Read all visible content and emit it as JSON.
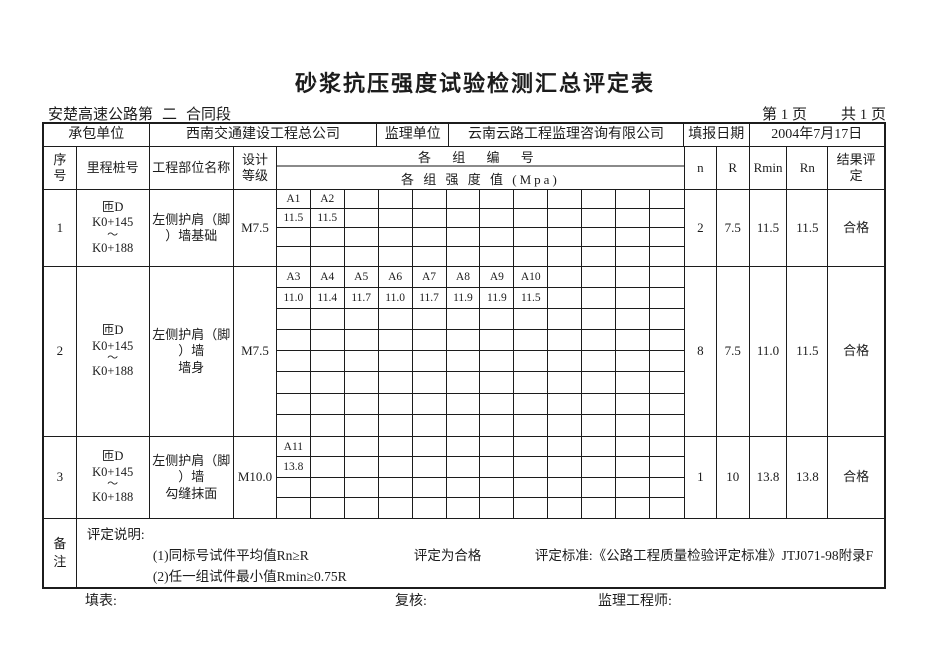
{
  "page": {
    "title": "砂浆抗压强度试验检测汇总评定表",
    "contract_prefix": "安楚高速公路第",
    "contract_no": "二",
    "contract_suffix": "合同段",
    "page_left": "第 1 页",
    "page_right": "共 1 页"
  },
  "info_header": {
    "contractor_label": "承包单位",
    "contractor_value": "西南交通建设工程总公司",
    "supervisor_label": "监理单位",
    "supervisor_value": "云南云路工程监理咨询有限公司",
    "date_label": "填报日期",
    "date_value": "2004年7月17日"
  },
  "columns": {
    "seq": "序号",
    "station": "里程桩号",
    "part_name": "工程部位名称",
    "design_grade": "设计等级",
    "group_top": "各 组 编 号",
    "group_bottom": "各 组 强 度 值 (Mpa)",
    "n": "n",
    "r": "R",
    "rmin": "Rmin",
    "rn": "Rn",
    "result": "结果评定"
  },
  "rows": [
    {
      "seq": "1",
      "station_lines": [
        "匝D",
        "K0+145",
        "～",
        "K0+188"
      ],
      "part_lines": [
        "左侧护肩（脚）墙基础"
      ],
      "grade": "M7.5",
      "sub_rows": 4,
      "labels": [
        "A1",
        "A2"
      ],
      "values": [
        "11.5",
        "11.5"
      ],
      "n": "2",
      "R": "7.5",
      "Rmin": "11.5",
      "Rn": "11.5",
      "result": "合格"
    },
    {
      "seq": "2",
      "station_lines": [
        "匝D",
        "K0+145",
        "～",
        "K0+188"
      ],
      "part_lines": [
        "左侧护肩（脚）墙",
        "墙身"
      ],
      "grade": "M7.5",
      "sub_rows": 8,
      "labels": [
        "A3",
        "A4",
        "A5",
        "A6",
        "A7",
        "A8",
        "A9",
        "A10"
      ],
      "values": [
        "11.0",
        "11.4",
        "11.7",
        "11.0",
        "11.7",
        "11.9",
        "11.9",
        "11.5"
      ],
      "n": "8",
      "R": "7.5",
      "Rmin": "11.0",
      "Rn": "11.5",
      "result": "合格"
    },
    {
      "seq": "3",
      "station_lines": [
        "匝D",
        "K0+145",
        "～",
        "K0+188"
      ],
      "part_lines": [
        "左侧护肩（脚）墙",
        "勾缝抹面"
      ],
      "grade": "M10.0",
      "sub_rows": 4,
      "labels": [
        "A11"
      ],
      "values": [
        "13.8"
      ],
      "n": "1",
      "R": "10",
      "Rmin": "13.8",
      "Rn": "13.8",
      "result": "合格"
    }
  ],
  "remarks": {
    "label": "备注",
    "title": "评定说明:",
    "item1": "(1)同标号试件平均值Rn≥R",
    "middle": "评定为合格",
    "standard": "评定标准:《公路工程质量检验评定标准》JTJ071-98附录F",
    "item2": "(2)任一组试件最小值Rmin≥0.75R"
  },
  "footer": {
    "fill": "填表:",
    "review": "复核:",
    "engineer": "监理工程师:"
  },
  "colors": {
    "border": "#1c1c1c",
    "divider": "#8a8a8a",
    "background": "#ffffff"
  }
}
